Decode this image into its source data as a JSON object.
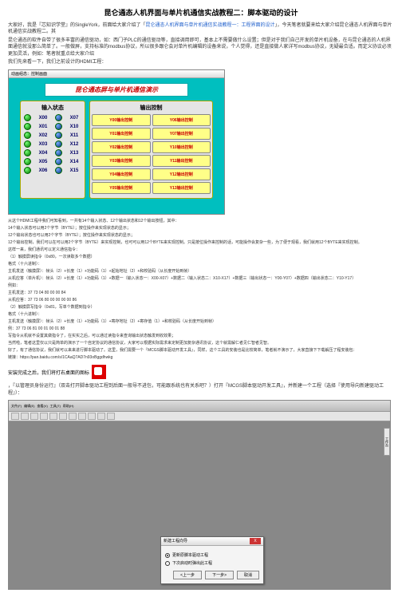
{
  "title": "昆仑通态人机界面与单片机通信实战教程二：脚本驱动的设计",
  "intro1_a": "大家好，我是『芯知识学堂』的SingleYork，前面给大家介绍了「",
  "intro1_link": "昆仑通态人机界面与单片机通信实战教程一：工程界面的设计",
  "intro1_b": "」，今天笔者就要来给大家介绍昆仑通态人机界面与单片机通信实战教程二。其",
  "para2": "昆仑通态的软件自带了很多丰富的通信驱动，如：西门子PLC的通信驱动等，直接调用即可，基本上不需要做什么设置；但是对于我们自己开发的单片机设备，在与昆仑通态的人机界面通信就没那么简单了。一般做屏，支持标准的modbus协议，所以很多跟仑会对单片机编辑的设备来说，个人觉得，还是直接做人家详写modbus协议，无疑最合适。而定义协议必须更加灵活，例如：笔者就重点给大家介绍",
  "para3": "我们先来看一下，我们之前设计的HDMI工程：",
  "hdmi": {
    "window_title": "动画组态：控制画面",
    "banner": "昆仑通态屏与单片机通信演示",
    "input_title": "输入状态",
    "output_title": "输出控制",
    "inputs_left": [
      "X00",
      "X01",
      "X02",
      "X03",
      "X04",
      "X05",
      "X06"
    ],
    "inputs_right": [
      "X07",
      "X10",
      "X11",
      "X12",
      "X13",
      "X14",
      "X15"
    ],
    "outputs": [
      [
        "Y00输出控制",
        "Y06输出控制"
      ],
      [
        "Y01输出控制",
        "Y07输出控制"
      ],
      [
        "Y02输出控制",
        "Y10输出控制"
      ],
      [
        "Y03输出控制",
        "Y11输出控制"
      ],
      [
        "Y04输出控制",
        "Y12输出控制"
      ],
      [
        "Y05输出控制",
        "Y13输出控制"
      ]
    ],
    "banner_color": "#cc0000",
    "canvas_color": "#00bfbf",
    "btn_bg": "#ffff88",
    "btn_fg": "#cc0000"
  },
  "after_img": [
    "从这个HDMI工程中我们可知看到，一共有14个输入状态、12个输出状态和12个输出按钮，其中：",
    "14个输入状态可以用2个字节（BYTE）；按位操作来实现状态的显示；",
    "12个输出状态也可以用2个字节（BYTE）；按位操作来实现状态的显示；",
    "12个输出控制，我们可以在可以用2个字节（BYTE）来实现控制，也可可以用12个BYTE来实现控制。只是按位操作来控制的话，可能操作会复杂一些，为了便于观看，我们就用12个BYTE来实现控制。",
    "这样一来，我们通讯可以定义通信指令：",
    "（1）触摸屏读指令（0x80，一次读取多个数据）",
    "格式（十六进制）：",
    "主机发送（触摸屏）：帧头（2）+长度（1）+功能码（1）+起始地址（2）+和校验码（从长度开始到帧）",
    "从机应答（单片机）：帧头（2）+长度（1）+功能码（1）+数据一（输入状态一：X00-X07）+数据二（输入状态二：X10-X17）+数据三（输出状态一：Y00-Y07）+数据四（输出状态二：Y10-Y17）",
    "例如：",
    "主机发送：37 73 04 80 00 00 84",
    "从机应答：37 73 06 80 00 00 00 00 86",
    "（2）触摸屏写指令（0x81，写单个数据到指令）",
    "格式（十六进制）：",
    "主机发送（触摸屏）：帧头（2）+长度（1）+功能码（1）+寄存地址（2）+寄存值（1）+和校验码（从长度开始到帧）",
    "例：37 73 06 81 00 01 00 01 88",
    "写指令从机就不设置其做指令了，在实实之后，可以通过读指令来查询输出状态触发到收效果；",
    "当然啦，笔者这里仅以只是简单的演示了一个自定协议的通信协议，大家可以根据实际需求来定制更加复杂通讯协议，这个就需解仁者见仁智者见智。",
    "好了，有了通信协议，我们就可以来来进行脚本驱动了。这里，我们需要一个『MCGS脚本驱动开发工具』，同样，这个工具的安装也是比较简单，笔者就不演示了，大家直接下下载解压了程安装包：",
    "链接：https://pan.baidu.com/s/1CAaQ7AD7n93oBggdhwkg"
  ],
  "postInstall_a": "安装完成之后，我们将打右桌面的图标",
  "postInstall_b": "，『以管理员身份运行』（双击打开脚本驱动工程到后面一般导不进包，可能跟系统也有关系吧？）打开『MCGS脚本驱动开发工具』，并新建一个工程（选择『使用导向新建驱动工程』）：",
  "ide": {
    "menus": [
      "文件(F)",
      "编辑(E)",
      "查看(V)",
      "工具(T)",
      "帮助(H)"
    ],
    "side_tab": "工作台",
    "dialog_title": "新建工程向导",
    "radio1": "更新原脚本驱动工程",
    "radio2": "下次启动时弹出此工程",
    "btn_prev": "<上一步",
    "btn_next": "下一步>",
    "btn_cancel": "取消",
    "close": "X"
  }
}
